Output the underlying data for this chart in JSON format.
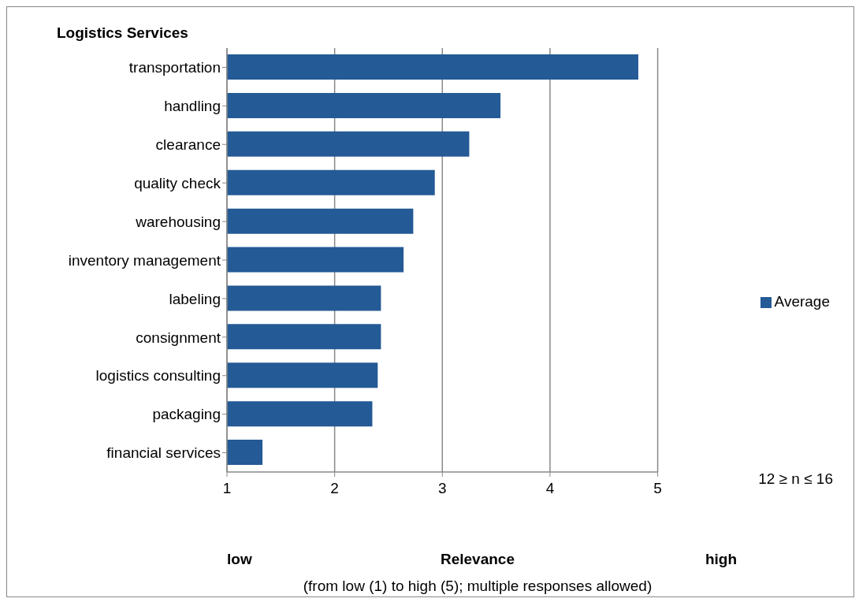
{
  "chart_data": {
    "type": "bar",
    "orientation": "horizontal",
    "title": "Logistics Services",
    "xlabel": "Relevance",
    "categories": [
      "transportation",
      "handling",
      "clearance",
      "quality check",
      "warehousing",
      "inventory management",
      "labeling",
      "consignment",
      "logistics consulting",
      "packaging",
      "financial services"
    ],
    "series": [
      {
        "name": "Average",
        "color": "#245a95",
        "values": [
          4.82,
          3.54,
          3.25,
          2.93,
          2.73,
          2.64,
          2.43,
          2.43,
          2.4,
          2.35,
          1.33
        ]
      }
    ],
    "xlim": [
      1,
      5
    ],
    "xticks": [
      1,
      2,
      3,
      4,
      5
    ],
    "grid": "x",
    "legend": "right",
    "annotations": [
      "low",
      "high",
      "12 ≥ n ≤ 16",
      "(from low (1) to high (5); multiple responses allowed)"
    ]
  }
}
